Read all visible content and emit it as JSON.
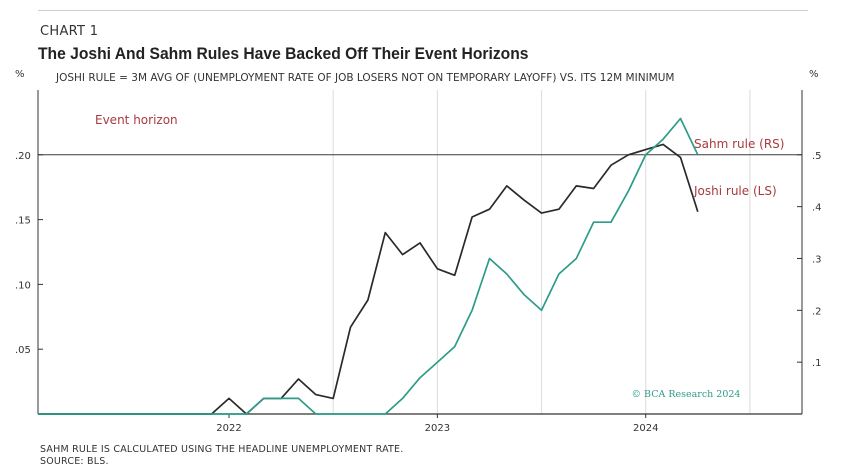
{
  "header": {
    "chart_label": "CHART 1",
    "title": "The Joshi And Sahm Rules Have Backed Off Their Event Horizons"
  },
  "footer": {
    "note": "SAHM RULE IS CALCULATED USING THE HEADLINE UNEMPLOYMENT RATE.",
    "source": "SOURCE: BLS."
  },
  "chart_data": {
    "type": "line",
    "subtitle": "JOSHI RULE = 3M AVG OF (UNEMPLOYMENT RATE OF JOB LOSERS NOT ON TEMPORARY LAYOFF) VS. ITS 12M MINIMUM",
    "left_unit": "%",
    "right_unit": "%",
    "x_start": "2021-02",
    "x_end": "2024-10",
    "x_ticks": [
      {
        "date": "2022-01",
        "label": "2022"
      },
      {
        "date": "2023-01",
        "label": "2023"
      },
      {
        "date": "2024-01",
        "label": "2024"
      }
    ],
    "x_gridlines": [
      "2022-07",
      "2023-01",
      "2023-07",
      "2024-01",
      "2024-07"
    ],
    "left_axis": {
      "ylim": [
        0,
        0.25
      ],
      "ticks": [
        {
          "value": 0.05,
          "label": ".05"
        },
        {
          "value": 0.1,
          "label": ".10"
        },
        {
          "value": 0.15,
          "label": ".15"
        },
        {
          "value": 0.2,
          "label": ".20"
        }
      ]
    },
    "right_axis": {
      "ylim": [
        0,
        0.625
      ],
      "ticks": [
        {
          "value": 0.1,
          "label": ".1"
        },
        {
          "value": 0.2,
          "label": ".2"
        },
        {
          "value": 0.3,
          "label": ".3"
        },
        {
          "value": 0.4,
          "label": ".4"
        },
        {
          "value": 0.5,
          "label": ".5"
        }
      ]
    },
    "event_horizon": {
      "value": 0.2,
      "axis": "left",
      "label": "Event horizon"
    },
    "series": [
      {
        "name": "Joshi rule (LS)",
        "axis": "left",
        "color": "#2a2a2a",
        "points": [
          [
            "2021-02",
            0
          ],
          [
            "2021-03",
            0
          ],
          [
            "2021-04",
            0
          ],
          [
            "2021-05",
            0
          ],
          [
            "2021-06",
            0
          ],
          [
            "2021-07",
            0
          ],
          [
            "2021-08",
            0
          ],
          [
            "2021-09",
            0
          ],
          [
            "2021-10",
            0
          ],
          [
            "2021-11",
            0
          ],
          [
            "2021-12",
            0
          ],
          [
            "2022-01",
            0.012
          ],
          [
            "2022-02",
            0
          ],
          [
            "2022-03",
            0.012
          ],
          [
            "2022-04",
            0.012
          ],
          [
            "2022-05",
            0.027
          ],
          [
            "2022-06",
            0.015
          ],
          [
            "2022-07",
            0.012
          ],
          [
            "2022-08",
            0.067
          ],
          [
            "2022-09",
            0.088
          ],
          [
            "2022-10",
            0.14
          ],
          [
            "2022-11",
            0.123
          ],
          [
            "2022-12",
            0.132
          ],
          [
            "2023-01",
            0.112
          ],
          [
            "2023-02",
            0.107
          ],
          [
            "2023-03",
            0.152
          ],
          [
            "2023-04",
            0.158
          ],
          [
            "2023-05",
            0.176
          ],
          [
            "2023-06",
            0.165
          ],
          [
            "2023-07",
            0.155
          ],
          [
            "2023-08",
            0.158
          ],
          [
            "2023-09",
            0.176
          ],
          [
            "2023-10",
            0.174
          ],
          [
            "2023-11",
            0.192
          ],
          [
            "2023-12",
            0.2
          ],
          [
            "2024-01",
            0.204
          ],
          [
            "2024-02",
            0.208
          ],
          [
            "2024-03",
            0.198
          ],
          [
            "2024-04",
            0.156
          ]
        ]
      },
      {
        "name": "Sahm rule (RS)",
        "axis": "right",
        "color": "#2e9c89",
        "points": [
          [
            "2021-02",
            0
          ],
          [
            "2021-03",
            0
          ],
          [
            "2021-04",
            0
          ],
          [
            "2021-05",
            0
          ],
          [
            "2021-06",
            0
          ],
          [
            "2021-07",
            0
          ],
          [
            "2021-08",
            0
          ],
          [
            "2021-09",
            0
          ],
          [
            "2021-10",
            0
          ],
          [
            "2021-11",
            0
          ],
          [
            "2021-12",
            0
          ],
          [
            "2022-01",
            0
          ],
          [
            "2022-02",
            0
          ],
          [
            "2022-03",
            0.03
          ],
          [
            "2022-04",
            0.03
          ],
          [
            "2022-05",
            0.03
          ],
          [
            "2022-06",
            0
          ],
          [
            "2022-07",
            0
          ],
          [
            "2022-08",
            0
          ],
          [
            "2022-09",
            0
          ],
          [
            "2022-10",
            0
          ],
          [
            "2022-11",
            0.03
          ],
          [
            "2022-12",
            0.07
          ],
          [
            "2023-01",
            0.1
          ],
          [
            "2023-02",
            0.13
          ],
          [
            "2023-03",
            0.2
          ],
          [
            "2023-04",
            0.3
          ],
          [
            "2023-05",
            0.27
          ],
          [
            "2023-06",
            0.23
          ],
          [
            "2023-07",
            0.2
          ],
          [
            "2023-08",
            0.27
          ],
          [
            "2023-09",
            0.3
          ],
          [
            "2023-10",
            0.37
          ],
          [
            "2023-11",
            0.37
          ],
          [
            "2023-12",
            0.43
          ],
          [
            "2024-01",
            0.5
          ],
          [
            "2024-02",
            0.53
          ],
          [
            "2024-03",
            0.57
          ],
          [
            "2024-04",
            0.5
          ]
        ]
      }
    ],
    "labels": {
      "sahm": "Sahm rule (RS)",
      "joshi": "Joshi rule (LS)"
    },
    "copyright": "© BCA Research 2024"
  }
}
